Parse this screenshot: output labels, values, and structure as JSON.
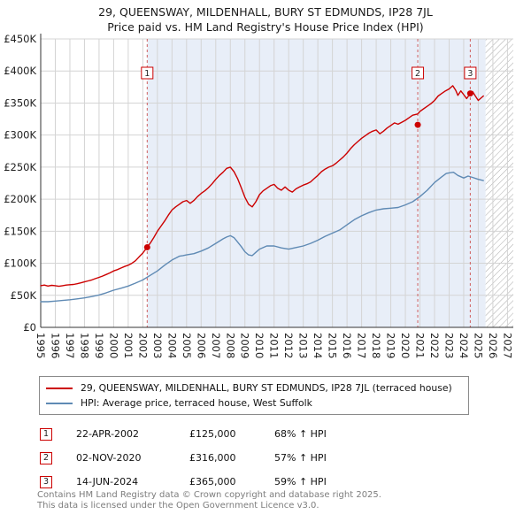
{
  "title": "29, QUEENSWAY, MILDENHALL, BURY ST EDMUNDS, IP28 7JL",
  "subtitle": "Price paid vs. HM Land Registry's House Price Index (HPI)",
  "colors": {
    "property": "#cc0000",
    "hpi": "#5f8ab4",
    "shade": "#e8eef8",
    "dashed": "#d06060",
    "grid": "#d4d4d4",
    "axis": "#333333",
    "hatch": "#aaaaaa"
  },
  "chart_data": {
    "type": "line",
    "x_range": [
      1995,
      2027.4
    ],
    "y_range": [
      0,
      450000
    ],
    "y_ticks": [
      [
        0,
        "£0"
      ],
      [
        50000,
        "£50K"
      ],
      [
        100000,
        "£100K"
      ],
      [
        150000,
        "£150K"
      ],
      [
        200000,
        "£200K"
      ],
      [
        250000,
        "£250K"
      ],
      [
        300000,
        "£300K"
      ],
      [
        350000,
        "£350K"
      ],
      [
        400000,
        "£400K"
      ],
      [
        450000,
        "£450K"
      ]
    ],
    "x_ticks": [
      1995,
      1996,
      1997,
      1998,
      1999,
      2000,
      2001,
      2002,
      2003,
      2004,
      2005,
      2006,
      2007,
      2008,
      2009,
      2010,
      2011,
      2012,
      2013,
      2014,
      2015,
      2016,
      2017,
      2018,
      2019,
      2020,
      2021,
      2022,
      2023,
      2024,
      2025,
      2026,
      2027
    ],
    "shaded_region": [
      2002.3,
      2025.5
    ],
    "hatched_region": [
      2025.5,
      2027.4
    ],
    "markers": [
      {
        "label": "1",
        "x": 2002.3,
        "y": 125000
      },
      {
        "label": "2",
        "x": 2020.85,
        "y": 316000
      },
      {
        "label": "3",
        "x": 2024.45,
        "y": 365000
      }
    ],
    "series": [
      {
        "name": "29, QUEENSWAY, MILDENHALL, BURY ST EDMUNDS, IP28 7JL (terraced house)",
        "color": "#cc0000",
        "points": [
          [
            1995.0,
            65000
          ],
          [
            1995.25,
            66000
          ],
          [
            1995.5,
            64500
          ],
          [
            1995.75,
            65500
          ],
          [
            1996.0,
            65000
          ],
          [
            1996.25,
            64000
          ],
          [
            1996.5,
            65000
          ],
          [
            1996.75,
            66000
          ],
          [
            1997.0,
            66500
          ],
          [
            1997.25,
            67000
          ],
          [
            1997.5,
            68000
          ],
          [
            1997.75,
            69500
          ],
          [
            1998.0,
            71000
          ],
          [
            1998.25,
            72500
          ],
          [
            1998.5,
            74000
          ],
          [
            1998.75,
            76000
          ],
          [
            1999.0,
            78000
          ],
          [
            1999.25,
            80000
          ],
          [
            1999.5,
            82500
          ],
          [
            1999.75,
            85000
          ],
          [
            2000.0,
            88000
          ],
          [
            2000.25,
            90000
          ],
          [
            2000.5,
            92500
          ],
          [
            2000.75,
            95000
          ],
          [
            2001.0,
            97000
          ],
          [
            2001.25,
            100000
          ],
          [
            2001.5,
            104000
          ],
          [
            2001.75,
            110000
          ],
          [
            2002.0,
            116000
          ],
          [
            2002.3,
            125000
          ],
          [
            2002.5,
            131000
          ],
          [
            2002.75,
            140000
          ],
          [
            2003.0,
            150000
          ],
          [
            2003.25,
            158000
          ],
          [
            2003.5,
            166000
          ],
          [
            2003.75,
            175000
          ],
          [
            2004.0,
            183000
          ],
          [
            2004.25,
            188000
          ],
          [
            2004.5,
            192000
          ],
          [
            2004.75,
            196000
          ],
          [
            2005.0,
            198000
          ],
          [
            2005.25,
            193500
          ],
          [
            2005.5,
            198000
          ],
          [
            2005.75,
            204000
          ],
          [
            2006.0,
            209000
          ],
          [
            2006.25,
            213000
          ],
          [
            2006.5,
            218000
          ],
          [
            2006.75,
            224000
          ],
          [
            2007.0,
            231000
          ],
          [
            2007.25,
            237000
          ],
          [
            2007.5,
            242000
          ],
          [
            2007.75,
            248000
          ],
          [
            2008.0,
            250000
          ],
          [
            2008.25,
            243000
          ],
          [
            2008.5,
            232000
          ],
          [
            2008.75,
            218000
          ],
          [
            2009.0,
            203000
          ],
          [
            2009.25,
            192000
          ],
          [
            2009.5,
            188000
          ],
          [
            2009.75,
            196000
          ],
          [
            2010.0,
            207000
          ],
          [
            2010.25,
            213000
          ],
          [
            2010.5,
            217000
          ],
          [
            2010.75,
            221000
          ],
          [
            2011.0,
            223000
          ],
          [
            2011.25,
            217000
          ],
          [
            2011.5,
            214000
          ],
          [
            2011.75,
            219000
          ],
          [
            2012.0,
            214000
          ],
          [
            2012.25,
            211000
          ],
          [
            2012.5,
            216000
          ],
          [
            2012.75,
            219000
          ],
          [
            2013.0,
            222000
          ],
          [
            2013.25,
            224000
          ],
          [
            2013.5,
            227000
          ],
          [
            2013.75,
            232000
          ],
          [
            2014.0,
            237000
          ],
          [
            2014.25,
            243000
          ],
          [
            2014.5,
            247000
          ],
          [
            2014.75,
            250000
          ],
          [
            2015.0,
            252000
          ],
          [
            2015.25,
            256000
          ],
          [
            2015.5,
            261000
          ],
          [
            2015.75,
            266000
          ],
          [
            2016.0,
            272000
          ],
          [
            2016.25,
            279000
          ],
          [
            2016.5,
            285000
          ],
          [
            2016.75,
            290000
          ],
          [
            2017.0,
            295000
          ],
          [
            2017.25,
            299000
          ],
          [
            2017.5,
            303000
          ],
          [
            2017.75,
            306000
          ],
          [
            2018.0,
            308000
          ],
          [
            2018.25,
            302000
          ],
          [
            2018.5,
            306000
          ],
          [
            2018.75,
            311000
          ],
          [
            2019.0,
            315000
          ],
          [
            2019.25,
            319000
          ],
          [
            2019.5,
            317000
          ],
          [
            2019.75,
            320000
          ],
          [
            2020.0,
            323000
          ],
          [
            2020.25,
            327000
          ],
          [
            2020.5,
            331000
          ],
          [
            2020.85,
            333000
          ],
          [
            2021.0,
            337000
          ],
          [
            2021.25,
            341000
          ],
          [
            2021.5,
            345000
          ],
          [
            2021.75,
            349000
          ],
          [
            2022.0,
            354000
          ],
          [
            2022.25,
            361000
          ],
          [
            2022.5,
            365000
          ],
          [
            2022.75,
            369000
          ],
          [
            2023.0,
            372000
          ],
          [
            2023.25,
            377000
          ],
          [
            2023.45,
            370000
          ],
          [
            2023.6,
            362000
          ],
          [
            2023.8,
            369000
          ],
          [
            2024.0,
            363000
          ],
          [
            2024.2,
            357000
          ],
          [
            2024.45,
            365000
          ],
          [
            2024.6,
            368000
          ],
          [
            2024.8,
            361000
          ],
          [
            2025.0,
            354000
          ],
          [
            2025.2,
            358000
          ],
          [
            2025.35,
            361000
          ]
        ]
      },
      {
        "name": "HPI: Average price, terraced house, West Suffolk",
        "color": "#5f8ab4",
        "points": [
          [
            1995.0,
            40000
          ],
          [
            1995.5,
            40000
          ],
          [
            1996.0,
            41000
          ],
          [
            1996.5,
            42000
          ],
          [
            1997.0,
            43000
          ],
          [
            1997.5,
            44500
          ],
          [
            1998.0,
            46000
          ],
          [
            1998.5,
            48000
          ],
          [
            1999.0,
            50500
          ],
          [
            1999.5,
            54000
          ],
          [
            2000.0,
            58000
          ],
          [
            2000.5,
            61000
          ],
          [
            2001.0,
            64500
          ],
          [
            2001.5,
            69000
          ],
          [
            2002.0,
            74000
          ],
          [
            2002.5,
            81000
          ],
          [
            2003.0,
            88000
          ],
          [
            2003.5,
            97000
          ],
          [
            2004.0,
            105000
          ],
          [
            2004.25,
            108000
          ],
          [
            2004.5,
            111000
          ],
          [
            2004.75,
            112000
          ],
          [
            2005.0,
            113000
          ],
          [
            2005.5,
            115000
          ],
          [
            2006.0,
            119000
          ],
          [
            2006.5,
            124000
          ],
          [
            2007.0,
            131000
          ],
          [
            2007.5,
            138000
          ],
          [
            2007.75,
            141000
          ],
          [
            2008.0,
            143000
          ],
          [
            2008.25,
            140000
          ],
          [
            2008.5,
            133000
          ],
          [
            2008.75,
            126000
          ],
          [
            2009.0,
            118000
          ],
          [
            2009.25,
            113000
          ],
          [
            2009.5,
            112000
          ],
          [
            2009.75,
            117000
          ],
          [
            2010.0,
            122000
          ],
          [
            2010.5,
            127000
          ],
          [
            2011.0,
            127000
          ],
          [
            2011.5,
            124000
          ],
          [
            2012.0,
            122000
          ],
          [
            2012.5,
            124500
          ],
          [
            2013.0,
            127000
          ],
          [
            2013.5,
            131000
          ],
          [
            2014.0,
            136000
          ],
          [
            2014.5,
            142000
          ],
          [
            2015.0,
            147000
          ],
          [
            2015.5,
            152000
          ],
          [
            2016.0,
            160000
          ],
          [
            2016.5,
            168000
          ],
          [
            2017.0,
            174000
          ],
          [
            2017.5,
            179000
          ],
          [
            2018.0,
            183000
          ],
          [
            2018.5,
            185000
          ],
          [
            2019.0,
            186000
          ],
          [
            2019.5,
            187000
          ],
          [
            2020.0,
            191000
          ],
          [
            2020.5,
            196000
          ],
          [
            2021.0,
            204000
          ],
          [
            2021.5,
            214000
          ],
          [
            2022.0,
            226000
          ],
          [
            2022.5,
            235000
          ],
          [
            2022.8,
            240000
          ],
          [
            2023.0,
            241000
          ],
          [
            2023.3,
            242000
          ],
          [
            2023.6,
            237000
          ],
          [
            2024.0,
            233000
          ],
          [
            2024.3,
            236000
          ],
          [
            2024.6,
            234000
          ],
          [
            2025.0,
            231000
          ],
          [
            2025.35,
            229000
          ]
        ]
      }
    ]
  },
  "legend": [
    {
      "label": "29, QUEENSWAY, MILDENHALL, BURY ST EDMUNDS, IP28 7JL (terraced house)",
      "color": "#cc0000"
    },
    {
      "label": "HPI: Average price, terraced house, West Suffolk",
      "color": "#5f8ab4"
    }
  ],
  "transactions": [
    {
      "num": "1",
      "date": "22-APR-2002",
      "price": "£125,000",
      "hpi": "68% ↑ HPI"
    },
    {
      "num": "2",
      "date": "02-NOV-2020",
      "price": "£316,000",
      "hpi": "57% ↑ HPI"
    },
    {
      "num": "3",
      "date": "14-JUN-2024",
      "price": "£365,000",
      "hpi": "59% ↑ HPI"
    }
  ],
  "footer": {
    "line1": "Contains HM Land Registry data © Crown copyright and database right 2025.",
    "line2": "This data is licensed under the Open Government Licence v3.0."
  }
}
